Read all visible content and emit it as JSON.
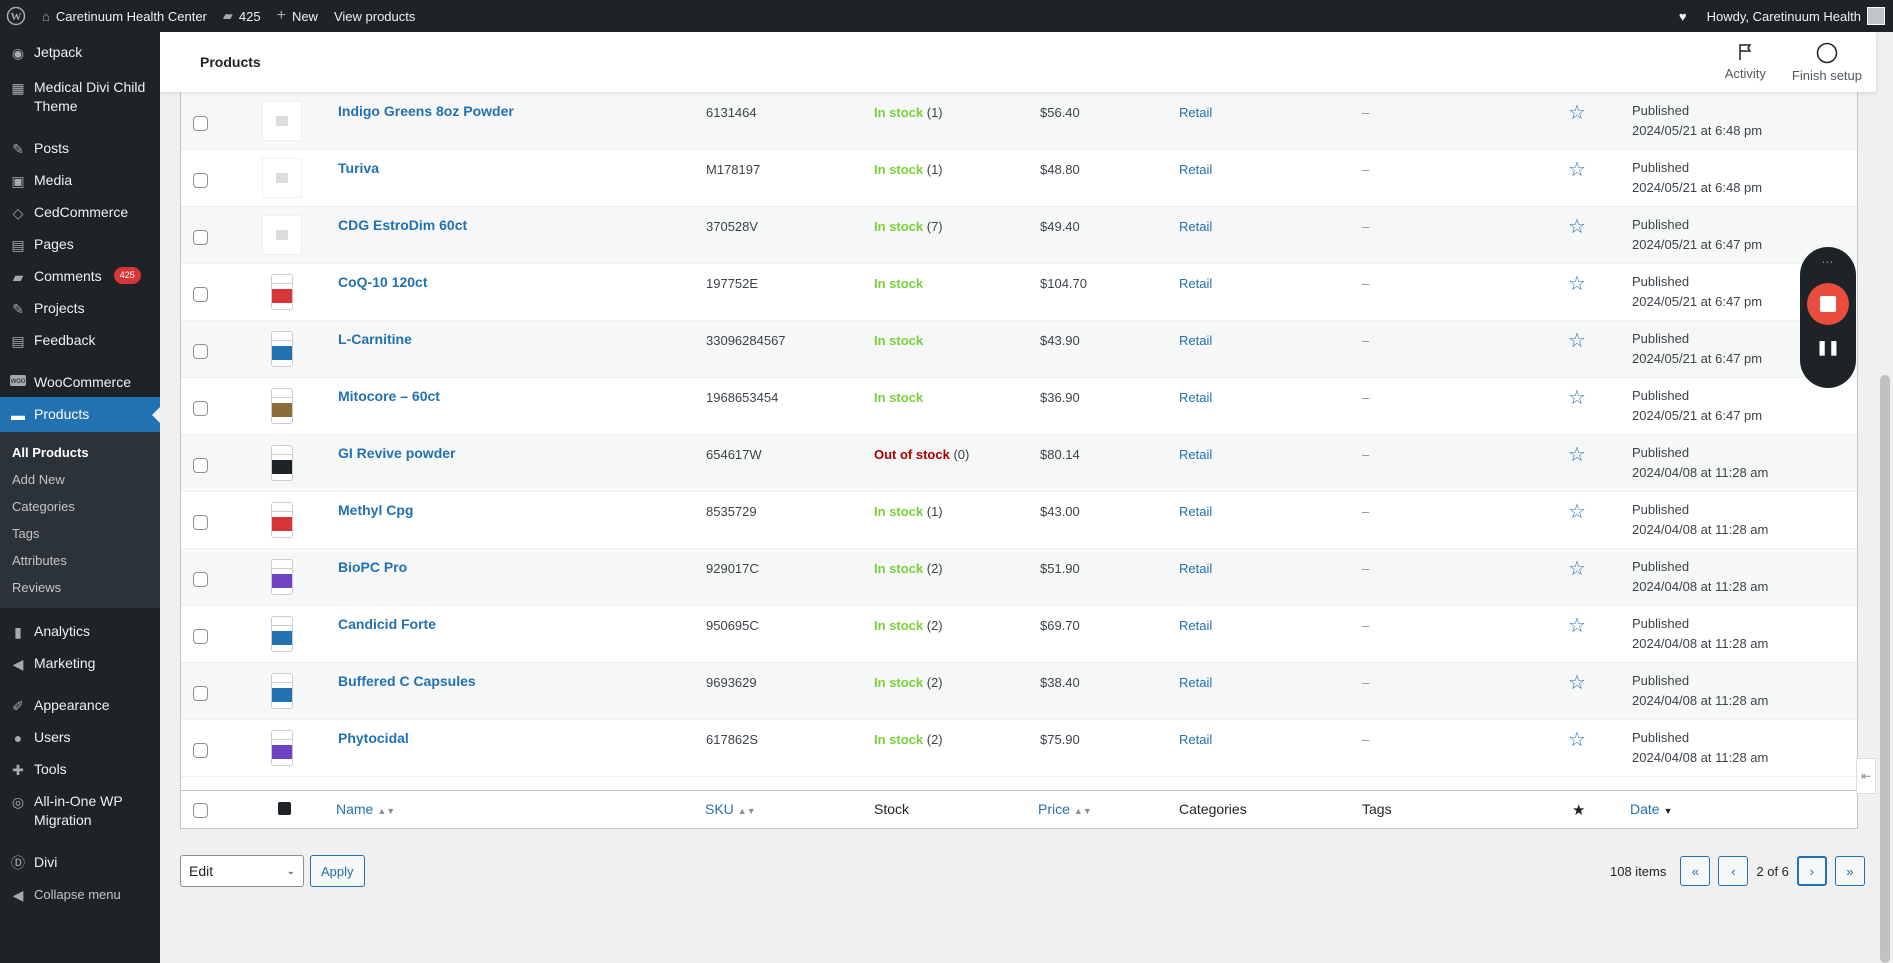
{
  "adminbar": {
    "site_name": "Caretinuum Health Center",
    "comments_count": "425",
    "new_label": "New",
    "view_label": "View products",
    "howdy": "Howdy, Caretinuum Health"
  },
  "sidebar": {
    "items": [
      {
        "label": "Jetpack",
        "icon": "jetpack-icon"
      },
      {
        "label": "Medical Divi Child Theme",
        "icon": "theme-icon"
      },
      {
        "label": "Posts",
        "icon": "pushpin-icon"
      },
      {
        "label": "Media",
        "icon": "media-icon"
      },
      {
        "label": "CedCommerce",
        "icon": "cedcommerce-icon"
      },
      {
        "label": "Pages",
        "icon": "pages-icon"
      },
      {
        "label": "Comments",
        "icon": "comments-icon",
        "badge": "425"
      },
      {
        "label": "Projects",
        "icon": "pushpin-icon"
      },
      {
        "label": "Feedback",
        "icon": "feedback-icon"
      },
      {
        "label": "WooCommerce",
        "icon": "woo-icon"
      },
      {
        "label": "Products",
        "icon": "products-icon"
      },
      {
        "label": "Analytics",
        "icon": "analytics-icon"
      },
      {
        "label": "Marketing",
        "icon": "megaphone-icon"
      },
      {
        "label": "Appearance",
        "icon": "brush-icon"
      },
      {
        "label": "Users",
        "icon": "users-icon"
      },
      {
        "label": "Tools",
        "icon": "tools-icon"
      },
      {
        "label": "All-in-One WP Migration",
        "icon": "migration-icon"
      },
      {
        "label": "Divi",
        "icon": "divi-icon"
      },
      {
        "label": "Collapse menu",
        "icon": "collapse-icon"
      }
    ],
    "submenu": [
      "All Products",
      "Add New",
      "Categories",
      "Tags",
      "Attributes",
      "Reviews"
    ]
  },
  "header": {
    "title": "Products",
    "activity": "Activity",
    "finish_setup": "Finish setup"
  },
  "products": [
    {
      "name": "Indigo Greens 8oz Powder",
      "sku": "6131464",
      "stock": "In stock",
      "qty": "(1)",
      "price": "$56.40",
      "category": "Retail",
      "tags": "–",
      "status": "Published",
      "date": "2024/05/21 at 6:48 pm"
    },
    {
      "name": "Turiva",
      "sku": "M178197",
      "stock": "In stock",
      "qty": "(1)",
      "price": "$48.80",
      "category": "Retail",
      "tags": "–",
      "status": "Published",
      "date": "2024/05/21 at 6:48 pm"
    },
    {
      "name": "CDG EstroDim 60ct",
      "sku": "370528V",
      "stock": "In stock",
      "qty": "(7)",
      "price": "$49.40",
      "category": "Retail",
      "tags": "–",
      "status": "Published",
      "date": "2024/05/21 at 6:47 pm"
    },
    {
      "name": "CoQ-10 120ct",
      "sku": "197752E",
      "stock": "In stock",
      "qty": "",
      "price": "$104.70",
      "category": "Retail",
      "tags": "–",
      "status": "Published",
      "date": "2024/05/21 at 6:47 pm"
    },
    {
      "name": "L-Carnitine",
      "sku": "33096284567",
      "stock": "In stock",
      "qty": "",
      "price": "$43.90",
      "category": "Retail",
      "tags": "–",
      "status": "Published",
      "date": "2024/05/21 at 6:47 pm"
    },
    {
      "name": "Mitocore – 60ct",
      "sku": "1968653454",
      "stock": "In stock",
      "qty": "",
      "price": "$36.90",
      "category": "Retail",
      "tags": "–",
      "status": "Published",
      "date": "2024/05/21 at 6:47 pm"
    },
    {
      "name": "GI Revive powder",
      "sku": "654617W",
      "stock": "Out of stock",
      "qty": "(0)",
      "price": "$80.14",
      "category": "Retail",
      "tags": "–",
      "status": "Published",
      "date": "2024/04/08 at 11:28 am"
    },
    {
      "name": "Methyl Cpg",
      "sku": "8535729",
      "stock": "In stock",
      "qty": "(1)",
      "price": "$43.00",
      "category": "Retail",
      "tags": "–",
      "status": "Published",
      "date": "2024/04/08 at 11:28 am"
    },
    {
      "name": "BioPC Pro",
      "sku": "929017C",
      "stock": "In stock",
      "qty": "(2)",
      "price": "$51.90",
      "category": "Retail",
      "tags": "–",
      "status": "Published",
      "date": "2024/04/08 at 11:28 am"
    },
    {
      "name": "Candicid Forte",
      "sku": "950695C",
      "stock": "In stock",
      "qty": "(2)",
      "price": "$69.70",
      "category": "Retail",
      "tags": "–",
      "status": "Published",
      "date": "2024/04/08 at 11:28 am"
    },
    {
      "name": "Buffered C Capsules",
      "sku": "9693629",
      "stock": "In stock",
      "qty": "(2)",
      "price": "$38.40",
      "category": "Retail",
      "tags": "–",
      "status": "Published",
      "date": "2024/04/08 at 11:28 am"
    },
    {
      "name": "Phytocidal",
      "sku": "617862S",
      "stock": "In stock",
      "qty": "(2)",
      "price": "$75.90",
      "category": "Retail",
      "tags": "–",
      "status": "Published",
      "date": "2024/04/08 at 11:28 am"
    }
  ],
  "columns": {
    "name": "Name",
    "sku": "SKU",
    "stock": "Stock",
    "price": "Price",
    "categories": "Categories",
    "tags": "Tags",
    "date": "Date"
  },
  "bulk": {
    "selected": "Edit",
    "apply": "Apply"
  },
  "pagination": {
    "items": "108 items",
    "page": "2 of 6",
    "first": "«",
    "prev": "‹",
    "next": "›",
    "last": "»"
  },
  "colors": {
    "link": "#2271b1",
    "in_stock": "#7ad03a",
    "out_of_stock": "#aa0000",
    "sidebar": "#1d2327"
  }
}
